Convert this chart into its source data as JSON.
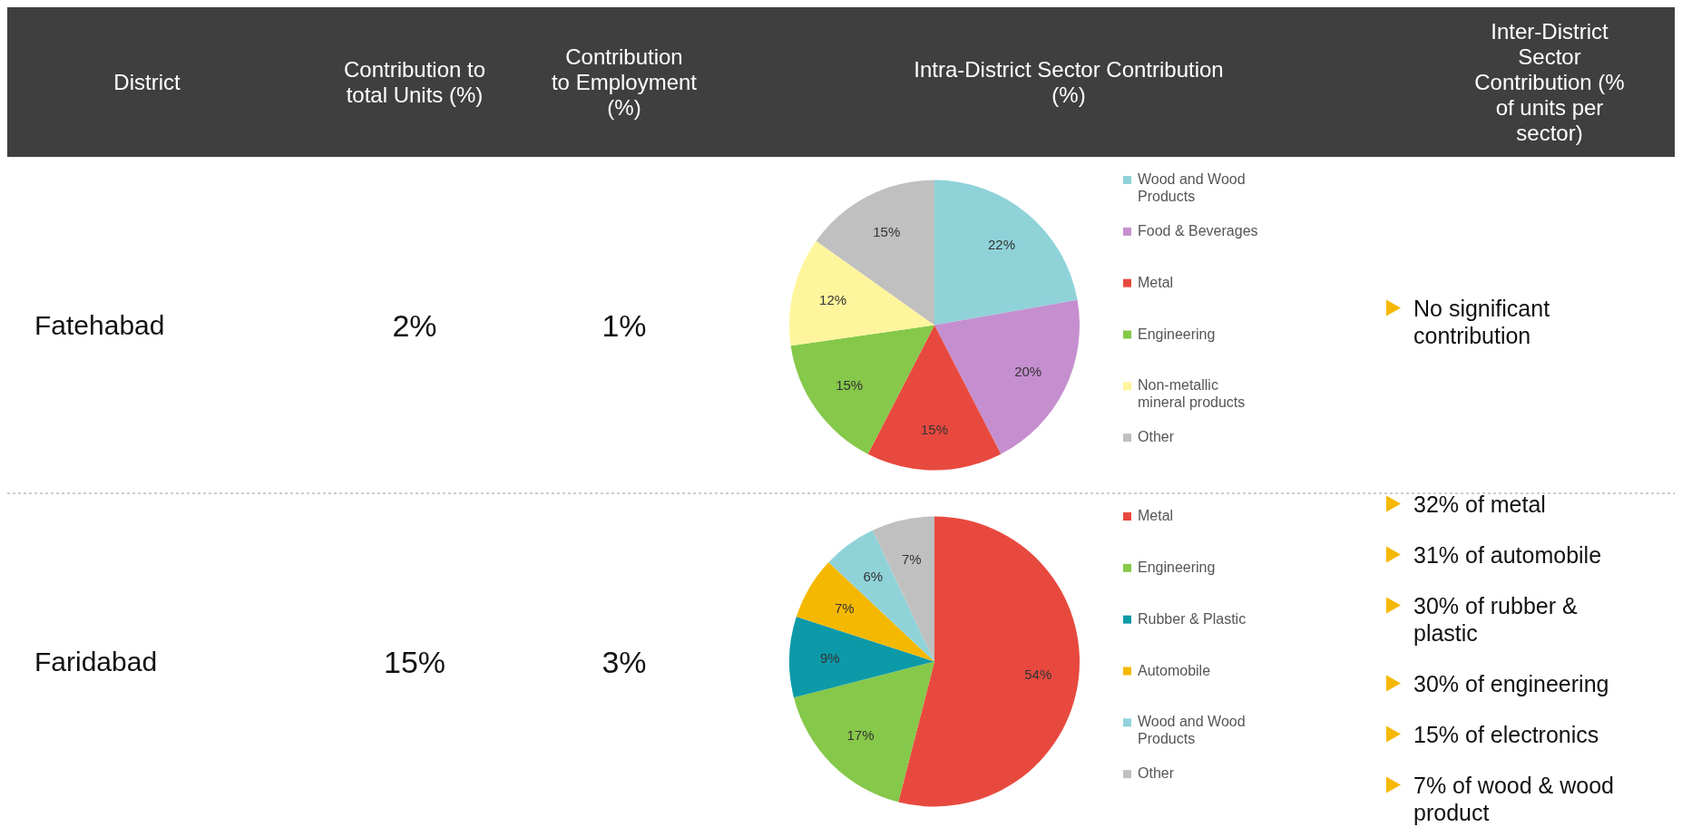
{
  "chart_data": [
    {
      "type": "other",
      "annotations": [
        "District",
        "Contribution to total Units (%)",
        "Contribution to Employment (%)",
        "Intra-District Sector Contribution (%)",
        "Inter-District Sector Contribution (% of units per sector)"
      ]
    },
    {
      "type": "pie",
      "categories": [
        "Wood and Wood Products",
        "Food & Beverages",
        "Metal",
        "Engineering",
        "Non-metallic mineral products",
        "Other"
      ],
      "values": [
        22,
        20,
        15,
        15,
        12,
        15
      ],
      "colors": [
        "#8fd3d9",
        "#c58fcf",
        "#e8493f",
        "#86c84a",
        "#fff59d",
        "#c0c0c0"
      ],
      "value_labels": [
        "22%",
        "20%",
        "15%",
        "15%",
        "12%",
        "15%"
      ],
      "legend": "right",
      "annotations": [
        "Fatehabad",
        "2%",
        "1%",
        "No significant contribution"
      ]
    },
    {
      "type": "pie",
      "categories": [
        "Metal",
        "Engineering",
        "Rubber & Plastic",
        "Automobile",
        "Wood and Wood Products",
        "Other"
      ],
      "values": [
        54,
        17,
        9,
        7,
        6,
        7
      ],
      "colors": [
        "#e8493f",
        "#86c84a",
        "#0d9aa8",
        "#f5b800",
        "#8fd3d9",
        "#c0c0c0"
      ],
      "value_labels": [
        "54%",
        "17%",
        "9%",
        "7%",
        "6%",
        "7%"
      ],
      "legend": "right",
      "annotations": [
        "Faridabad",
        "15%",
        "3%",
        "32% of metal",
        "31% of automobile",
        "30% of rubber & plastic",
        "30% of engineering",
        "15% of electronics",
        "7% of wood & wood product"
      ]
    }
  ]
}
